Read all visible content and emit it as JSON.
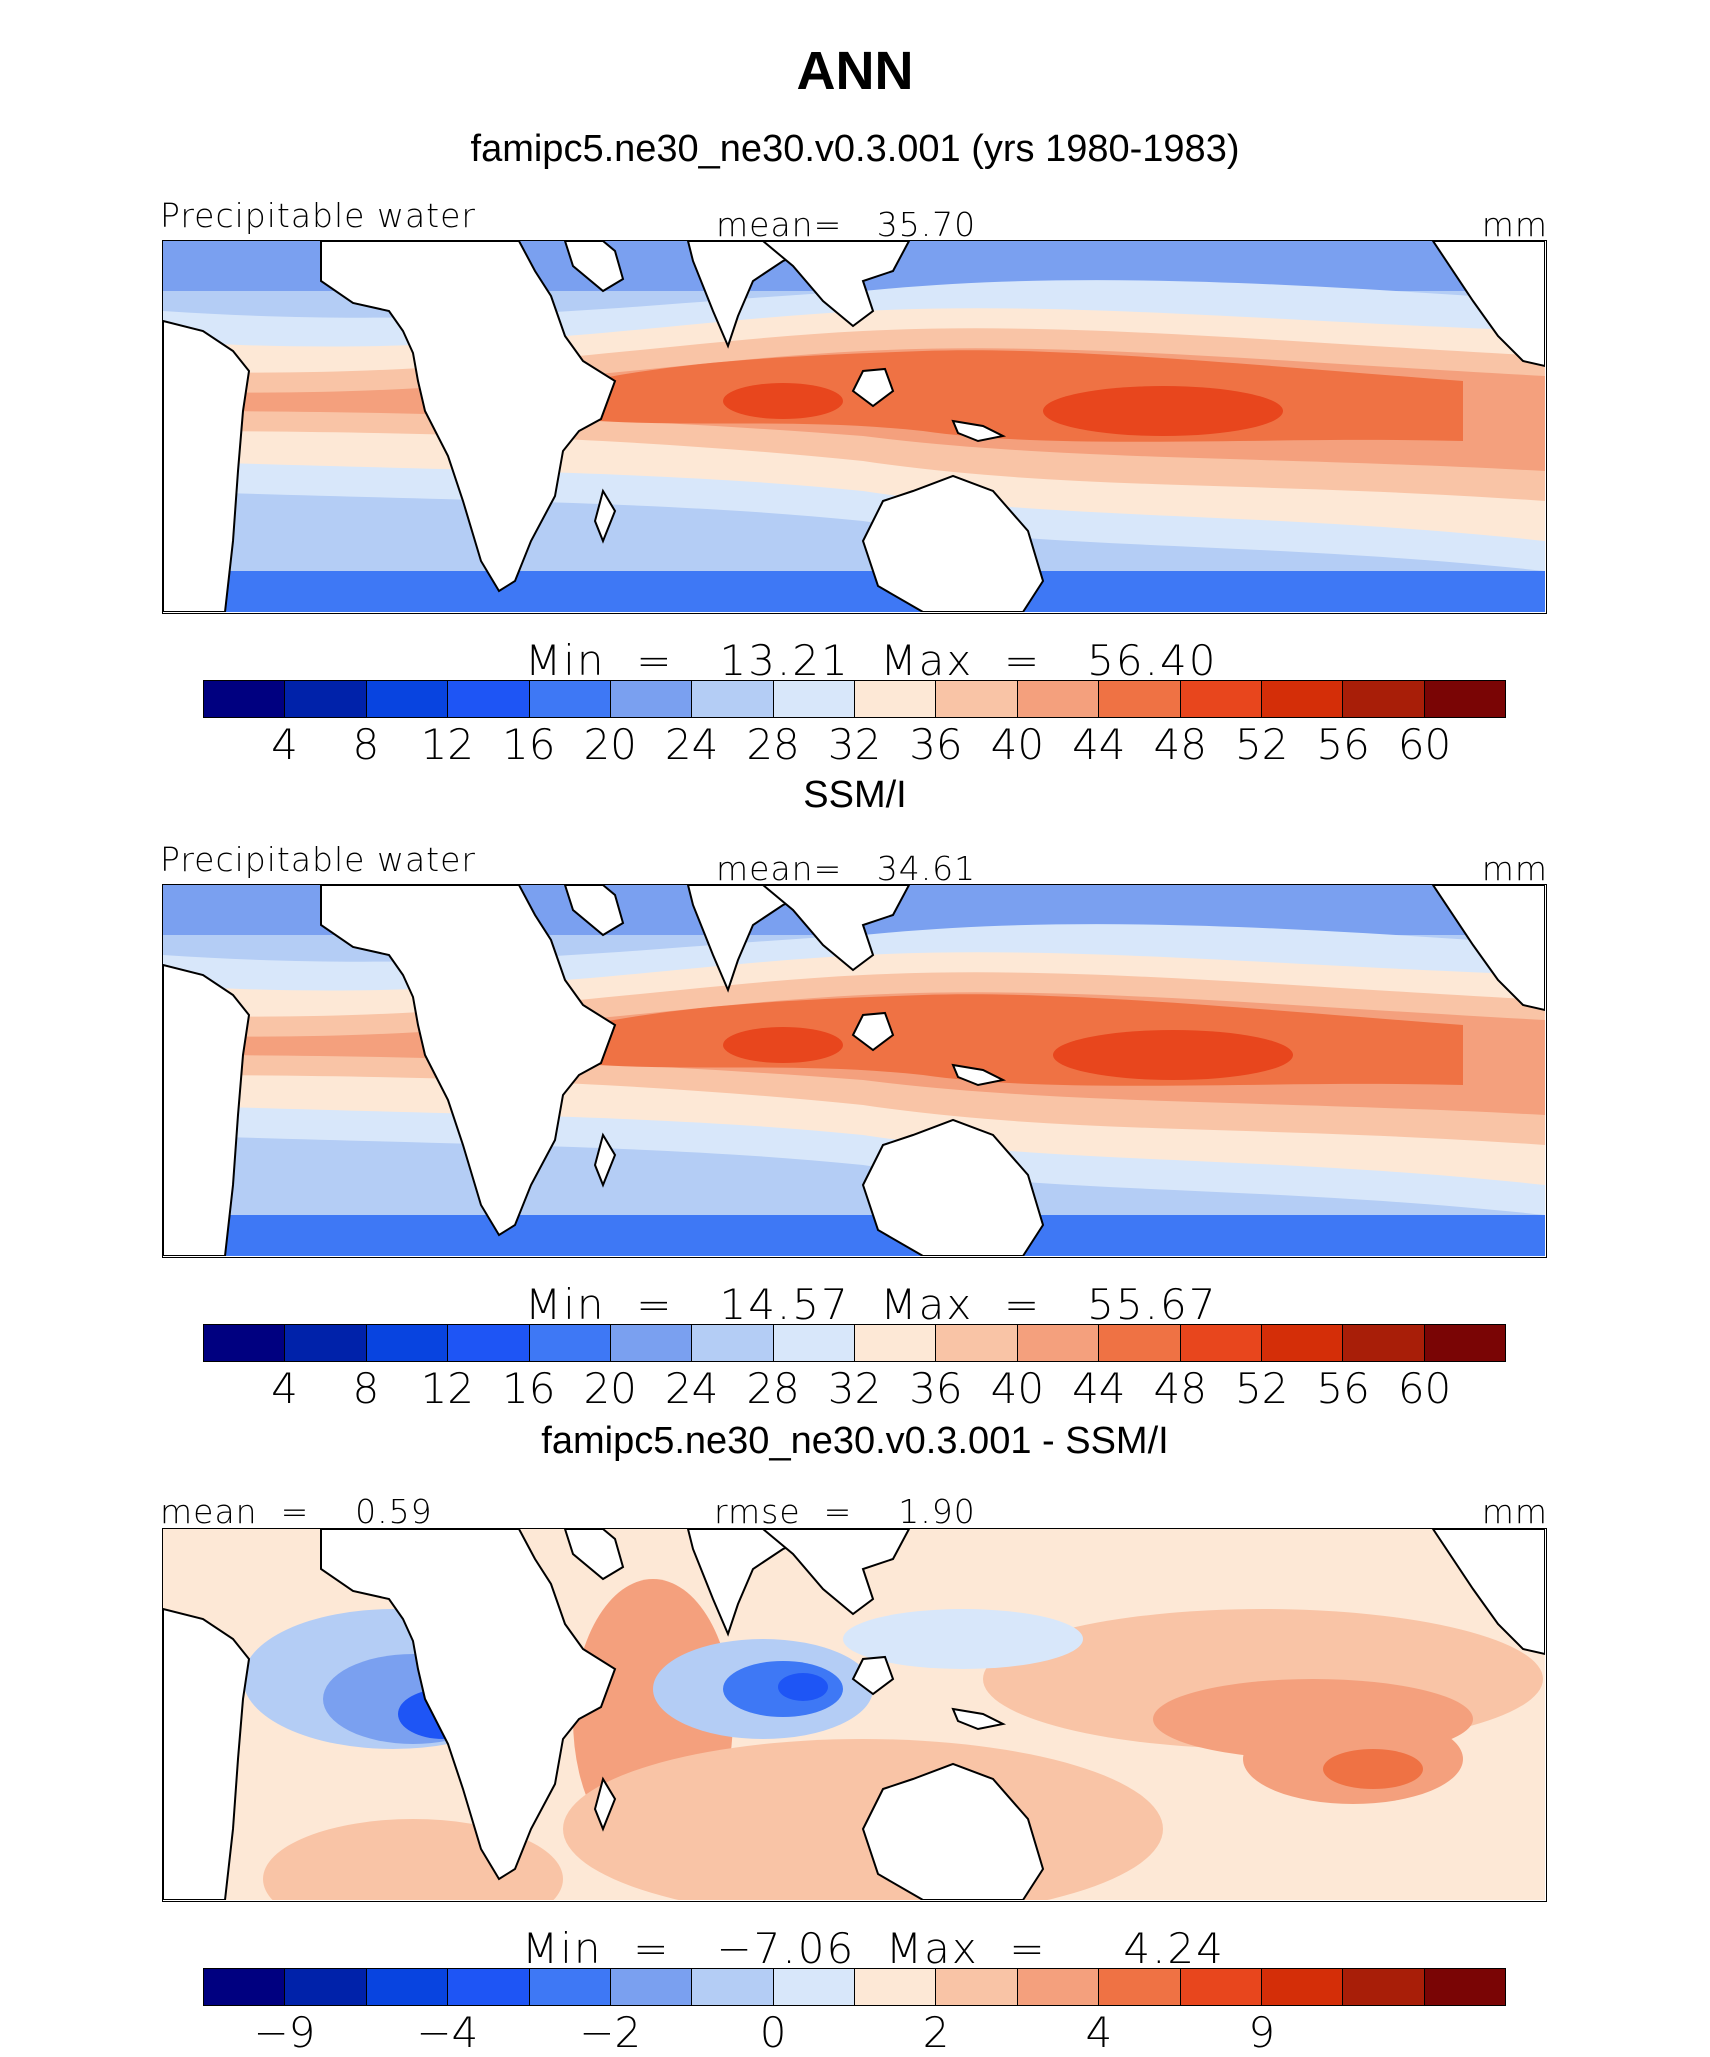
{
  "figure": {
    "title": "ANN"
  },
  "colors": {
    "abs": [
      "#000080",
      "#0022aa",
      "#0844e0",
      "#1e55f5",
      "#3e78f5",
      "#7aa0f0",
      "#b4cdf5",
      "#d8e7fa",
      "#fde8d6",
      "#f9c4a6",
      "#f4a07d",
      "#ef7244",
      "#e8461d",
      "#d42e08",
      "#a81e08",
      "#7a0505"
    ],
    "diff": [
      "#000080",
      "#0022aa",
      "#0844e0",
      "#1e55f5",
      "#3e78f5",
      "#7aa0f0",
      "#b4cdf5",
      "#d8e7fa",
      "#fde8d6",
      "#f9c4a6",
      "#f4a07d",
      "#ef7244",
      "#e8461d",
      "#d42e08",
      "#a81e08",
      "#7a0505"
    ]
  },
  "chart_data": [
    {
      "type": "heatmap",
      "title": "famipc5.ne30_ne30.v0.3.001 (yrs 1980-1983)",
      "variable": "Precipitable water",
      "mean_label": "mean=   35.70",
      "units": "mm",
      "minmax": "Min  =   13.21  Max  =   56.40",
      "min": 13.21,
      "max": 56.4,
      "mean": 35.7,
      "colorbar_levels": [
        4,
        8,
        12,
        16,
        20,
        24,
        28,
        32,
        36,
        40,
        44,
        48,
        52,
        56,
        60
      ],
      "tick_labels": [
        "4",
        "8",
        "12",
        "16",
        "20",
        "24",
        "28",
        "32",
        "36",
        "40",
        "44",
        "48",
        "52",
        "56",
        "60"
      ]
    },
    {
      "type": "heatmap",
      "title": "SSM/I",
      "variable": "Precipitable water",
      "mean_label": "mean=   34.61",
      "units": "mm",
      "minmax": "Min  =   14.57  Max  =   55.67",
      "min": 14.57,
      "max": 55.67,
      "mean": 34.61,
      "colorbar_levels": [
        4,
        8,
        12,
        16,
        20,
        24,
        28,
        32,
        36,
        40,
        44,
        48,
        52,
        56,
        60
      ],
      "tick_labels": [
        "4",
        "8",
        "12",
        "16",
        "20",
        "24",
        "28",
        "32",
        "36",
        "40",
        "44",
        "48",
        "52",
        "56",
        "60"
      ]
    },
    {
      "type": "heatmap",
      "title": "famipc5.ne30_ne30.v0.3.001 - SSM/I",
      "mean_label": "mean  =    0.59",
      "rmse_label": "rmse  =    1.90",
      "units": "mm",
      "minmax": "Min  =   −7.06  Max  =     4.24",
      "min": -7.06,
      "max": 4.24,
      "mean": 0.59,
      "rmse": 1.9,
      "colorbar_levels": [
        -9,
        -6,
        -4,
        -3,
        -2,
        -1,
        0,
        1,
        2,
        3,
        4,
        6,
        9
      ],
      "tick_labels": [
        "−9",
        "−4",
        "−2",
        "0",
        "2",
        "4",
        "9"
      ],
      "tick_boundary_index": [
        1,
        3,
        5,
        7,
        9,
        11,
        13
      ]
    }
  ]
}
